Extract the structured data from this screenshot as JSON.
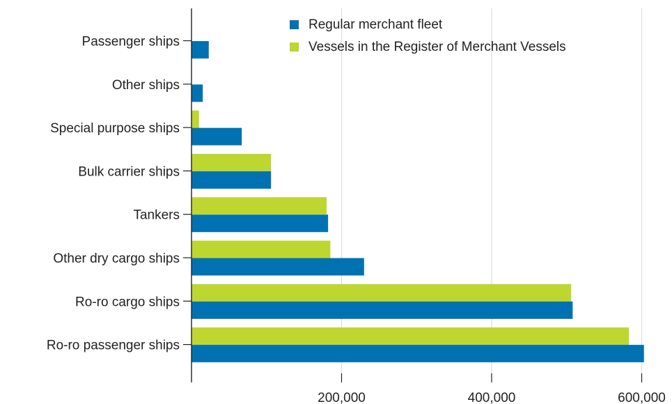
{
  "chart_data": {
    "type": "bar",
    "orientation": "horizontal",
    "categories": [
      "Passenger ships",
      "Other ships",
      "Special purpose ships",
      "Bulk carrier ships",
      "Tankers",
      "Other dry cargo ships",
      "Ro-ro cargo ships",
      "Ro-ro passenger ships"
    ],
    "series": [
      {
        "name": "Regular merchant fleet",
        "color": "#0072b2",
        "values": [
          23000,
          15000,
          67000,
          106000,
          182000,
          230000,
          508000,
          603000
        ]
      },
      {
        "name": "Vessels in the Register of Merchant Vessels",
        "color": "#bed630",
        "values": [
          0,
          0,
          10000,
          106000,
          180000,
          185000,
          506000,
          583000
        ]
      }
    ],
    "xlim": [
      0,
      620000
    ],
    "xticks": [
      {
        "value": 200000,
        "label": "200,000"
      },
      {
        "value": 400000,
        "label": "400,000"
      },
      {
        "value": 600000,
        "label": "600,000"
      }
    ],
    "grid": true,
    "legend": "top-right"
  }
}
